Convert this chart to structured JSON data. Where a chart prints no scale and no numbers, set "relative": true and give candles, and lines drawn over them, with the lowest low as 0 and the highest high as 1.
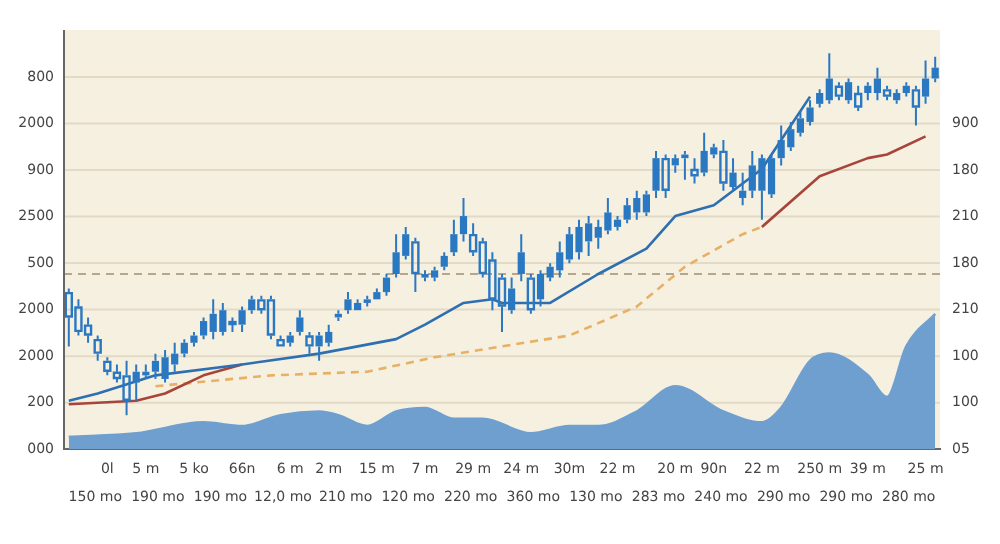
{
  "chart_data": {
    "type": "candlestick",
    "relative": true,
    "color": "#2a78c2",
    "categories": [
      null,
      null,
      null,
      null,
      "0l",
      null,
      null,
      null,
      "5 m",
      null,
      null,
      null,
      null,
      "5 ko",
      null,
      null,
      null,
      null,
      "66n",
      null,
      null,
      null,
      null,
      "6 m",
      null,
      null,
      null,
      "2 m",
      null,
      null,
      null,
      null,
      "15 m",
      null,
      null,
      null,
      null,
      "7 m",
      null,
      null,
      null,
      null,
      "29 m",
      null,
      null,
      null,
      null,
      "24 m",
      null,
      null,
      null,
      null,
      "30m",
      null,
      null,
      null,
      null,
      "22 m",
      null,
      null,
      null,
      null,
      null,
      "20 m",
      null,
      null,
      null,
      "90n",
      null,
      null,
      null,
      null,
      "22 m",
      null,
      null,
      null,
      null,
      null,
      "250 m",
      null,
      null,
      null,
      null,
      "39 m",
      null,
      null,
      null,
      null,
      null,
      "25 m",
      null
    ],
    "ohlc": [
      [
        0.34,
        0.35,
        0.19,
        0.27
      ],
      [
        0.3,
        0.32,
        0.22,
        0.23
      ],
      [
        0.25,
        0.27,
        0.2,
        0.22
      ],
      [
        0.21,
        0.22,
        0.15,
        0.17
      ],
      [
        0.15,
        0.16,
        0.11,
        0.12
      ],
      [
        0.12,
        0.14,
        0.09,
        0.1
      ],
      [
        0.11,
        0.15,
        0.0,
        0.04
      ],
      [
        0.09,
        0.14,
        0.04,
        0.12
      ],
      [
        0.11,
        0.14,
        0.1,
        0.12
      ],
      [
        0.12,
        0.17,
        0.1,
        0.15
      ],
      [
        0.1,
        0.18,
        0.09,
        0.16
      ],
      [
        0.14,
        0.2,
        0.12,
        0.17
      ],
      [
        0.17,
        0.21,
        0.16,
        0.2
      ],
      [
        0.2,
        0.23,
        0.19,
        0.22
      ],
      [
        0.22,
        0.27,
        0.21,
        0.26
      ],
      [
        0.23,
        0.32,
        0.21,
        0.28
      ],
      [
        0.23,
        0.31,
        0.22,
        0.29
      ],
      [
        0.26,
        0.27,
        0.23,
        0.25
      ],
      [
        0.25,
        0.3,
        0.23,
        0.29
      ],
      [
        0.29,
        0.33,
        0.28,
        0.32
      ],
      [
        0.32,
        0.33,
        0.28,
        0.29
      ],
      [
        0.32,
        0.33,
        0.21,
        0.22
      ],
      [
        0.21,
        0.22,
        0.19,
        0.19
      ],
      [
        0.2,
        0.23,
        0.19,
        0.22
      ],
      [
        0.23,
        0.29,
        0.22,
        0.27
      ],
      [
        0.22,
        0.23,
        0.17,
        0.19
      ],
      [
        0.19,
        0.23,
        0.15,
        0.22
      ],
      [
        0.2,
        0.25,
        0.19,
        0.23
      ],
      [
        0.27,
        0.29,
        0.26,
        0.28
      ],
      [
        0.29,
        0.34,
        0.28,
        0.32
      ],
      [
        0.29,
        0.32,
        0.29,
        0.31
      ],
      [
        0.31,
        0.33,
        0.3,
        0.32
      ],
      [
        0.32,
        0.35,
        0.32,
        0.34
      ],
      [
        0.34,
        0.39,
        0.33,
        0.38
      ],
      [
        0.39,
        0.5,
        0.38,
        0.45
      ],
      [
        0.44,
        0.52,
        0.43,
        0.5
      ],
      [
        0.48,
        0.49,
        0.34,
        0.39
      ],
      [
        0.38,
        0.4,
        0.37,
        0.39
      ],
      [
        0.38,
        0.41,
        0.37,
        0.4
      ],
      [
        0.41,
        0.45,
        0.4,
        0.44
      ],
      [
        0.45,
        0.54,
        0.44,
        0.5
      ],
      [
        0.5,
        0.6,
        0.48,
        0.55
      ],
      [
        0.5,
        0.53,
        0.44,
        0.45
      ],
      [
        0.48,
        0.49,
        0.38,
        0.39
      ],
      [
        0.43,
        0.45,
        0.29,
        0.32
      ],
      [
        0.38,
        0.39,
        0.23,
        0.3
      ],
      [
        0.29,
        0.38,
        0.28,
        0.35
      ],
      [
        0.39,
        0.5,
        0.37,
        0.45
      ],
      [
        0.38,
        0.39,
        0.28,
        0.29
      ],
      [
        0.32,
        0.4,
        0.3,
        0.39
      ],
      [
        0.38,
        0.42,
        0.37,
        0.41
      ],
      [
        0.4,
        0.48,
        0.38,
        0.45
      ],
      [
        0.43,
        0.52,
        0.42,
        0.5
      ],
      [
        0.45,
        0.54,
        0.43,
        0.52
      ],
      [
        0.48,
        0.55,
        0.44,
        0.53
      ],
      [
        0.49,
        0.54,
        0.46,
        0.52
      ],
      [
        0.51,
        0.6,
        0.5,
        0.56
      ],
      [
        0.52,
        0.55,
        0.51,
        0.54
      ],
      [
        0.54,
        0.6,
        0.53,
        0.58
      ],
      [
        0.56,
        0.62,
        0.54,
        0.6
      ],
      [
        0.56,
        0.62,
        0.55,
        0.61
      ],
      [
        0.62,
        0.73,
        0.6,
        0.71
      ],
      [
        0.71,
        0.72,
        0.6,
        0.62
      ],
      [
        0.69,
        0.72,
        0.67,
        0.71
      ],
      [
        0.71,
        0.73,
        0.65,
        0.72
      ],
      [
        0.68,
        0.71,
        0.64,
        0.66
      ],
      [
        0.67,
        0.78,
        0.66,
        0.73
      ],
      [
        0.72,
        0.75,
        0.71,
        0.74
      ],
      [
        0.73,
        0.76,
        0.62,
        0.64
      ],
      [
        0.63,
        0.71,
        0.62,
        0.67
      ],
      [
        0.6,
        0.67,
        0.58,
        0.62
      ],
      [
        0.62,
        0.73,
        0.6,
        0.69
      ],
      [
        0.62,
        0.72,
        0.54,
        0.71
      ],
      [
        0.61,
        0.72,
        0.6,
        0.71
      ],
      [
        0.71,
        0.8,
        0.69,
        0.76
      ],
      [
        0.74,
        0.81,
        0.73,
        0.79
      ],
      [
        0.78,
        0.84,
        0.77,
        0.82
      ],
      [
        0.81,
        0.87,
        0.8,
        0.85
      ],
      [
        0.86,
        0.9,
        0.85,
        0.89
      ],
      [
        0.87,
        1.0,
        0.86,
        0.93
      ],
      [
        0.91,
        0.92,
        0.87,
        0.88
      ],
      [
        0.87,
        0.93,
        0.86,
        0.92
      ],
      [
        0.89,
        0.91,
        0.84,
        0.85
      ],
      [
        0.89,
        0.92,
        0.87,
        0.91
      ],
      [
        0.89,
        0.96,
        0.87,
        0.93
      ],
      [
        0.9,
        0.91,
        0.87,
        0.88
      ],
      [
        0.87,
        0.9,
        0.86,
        0.89
      ],
      [
        0.89,
        0.92,
        0.88,
        0.91
      ],
      [
        0.9,
        0.91,
        0.8,
        0.85
      ],
      [
        0.88,
        0.98,
        0.86,
        0.93
      ],
      [
        0.93,
        0.99,
        0.92,
        0.96
      ]
    ],
    "series": [
      {
        "type": "area",
        "color": "#6f9fcf",
        "values": [
          -0.06,
          null,
          null,
          null,
          null,
          null,
          null,
          -0.05,
          null,
          null,
          null,
          null,
          null,
          null,
          -0.02,
          null,
          null,
          null,
          -0.03,
          null,
          null,
          null,
          0.0,
          null,
          null,
          null,
          0.01,
          null,
          0.0,
          null,
          null,
          -0.03,
          null,
          null,
          0.01,
          null,
          null,
          0.02,
          null,
          null,
          -0.01,
          null,
          null,
          -0.01,
          null,
          null,
          null,
          null,
          -0.05,
          null,
          null,
          null,
          -0.03,
          null,
          null,
          -0.03,
          null,
          null,
          null,
          0.01,
          null,
          null,
          null,
          0.08,
          null,
          null,
          null,
          null,
          0.01,
          null,
          null,
          null,
          -0.02,
          null,
          0.02,
          null,
          null,
          0.15,
          null,
          0.17,
          null,
          null,
          null,
          0.11,
          null,
          0.05,
          null,
          0.19,
          null,
          null,
          0.28
        ]
      },
      {
        "type": "line",
        "color": "#2d6fb1",
        "values": [
          0.04,
          null,
          null,
          0.06,
          null,
          null,
          null,
          null,
          null,
          0.11,
          null,
          null,
          null,
          null,
          null,
          null,
          null,
          null,
          0.14,
          null,
          null,
          null,
          null,
          null,
          null,
          null,
          0.17,
          null,
          null,
          null,
          null,
          null,
          null,
          null,
          0.21,
          null,
          null,
          0.25,
          null,
          null,
          null,
          0.31,
          null,
          null,
          0.32,
          0.31,
          null,
          null,
          null,
          null,
          0.31,
          null,
          null,
          null,
          null,
          0.39,
          null,
          null,
          null,
          null,
          0.46,
          null,
          null,
          0.55,
          null,
          null,
          null,
          0.58,
          null,
          null,
          null,
          null,
          0.68,
          null,
          0.76,
          null,
          null,
          0.88,
          null,
          null,
          null,
          null,
          null,
          null,
          null,
          null,
          null,
          null,
          null,
          null,
          null
        ]
      },
      {
        "type": "line",
        "color": "#a8453a",
        "values": [
          0.03,
          null,
          null,
          null,
          null,
          null,
          null,
          0.04,
          null,
          null,
          0.06,
          null,
          null,
          null,
          0.11,
          null,
          null,
          null,
          0.14,
          null,
          null,
          null,
          null,
          null,
          null,
          null,
          null,
          null,
          null,
          null,
          null,
          null,
          null,
          null,
          null,
          null,
          null,
          null,
          null,
          null,
          null,
          null,
          null,
          null,
          null,
          null,
          null,
          null,
          null,
          null,
          null,
          null,
          null,
          null,
          null,
          null,
          null,
          null,
          null,
          null,
          null,
          null,
          null,
          null,
          null,
          null,
          null,
          null,
          null,
          null,
          null,
          null,
          null,
          null,
          null,
          null,
          null,
          null,
          null,
          null,
          null,
          null,
          null,
          null,
          null,
          null,
          null,
          null,
          null,
          null,
          null
        ]
      },
      {
        "type": "line",
        "color": "#a8453a",
        "values": [
          null,
          null,
          null,
          null,
          null,
          null,
          null,
          null,
          null,
          null,
          null,
          null,
          null,
          null,
          null,
          null,
          null,
          null,
          null,
          null,
          null,
          null,
          null,
          null,
          null,
          null,
          null,
          null,
          null,
          null,
          null,
          null,
          null,
          null,
          null,
          null,
          null,
          null,
          null,
          null,
          null,
          null,
          null,
          null,
          null,
          null,
          null,
          null,
          null,
          null,
          null,
          null,
          null,
          null,
          null,
          null,
          null,
          null,
          null,
          null,
          null,
          null,
          null,
          null,
          null,
          null,
          null,
          null,
          null,
          null,
          null,
          null,
          0.52,
          null,
          null,
          null,
          null,
          null,
          0.66,
          null,
          null,
          null,
          null,
          0.71,
          null,
          0.72,
          null,
          null,
          null,
          0.77,
          null
        ]
      },
      {
        "type": "line",
        "line_style": "dashed",
        "color": "#e8b065",
        "values": [
          null,
          null,
          null,
          null,
          null,
          null,
          null,
          null,
          null,
          0.08,
          null,
          null,
          null,
          null,
          null,
          null,
          null,
          null,
          null,
          null,
          null,
          0.11,
          null,
          null,
          null,
          null,
          null,
          null,
          null,
          null,
          null,
          0.12,
          null,
          null,
          null,
          null,
          null,
          null,
          0.16,
          null,
          null,
          null,
          null,
          null,
          null,
          0.19,
          null,
          null,
          null,
          null,
          null,
          null,
          0.22,
          null,
          null,
          null,
          null,
          null,
          null,
          0.3,
          null,
          null,
          null,
          null,
          0.41,
          null,
          null,
          null,
          null,
          null,
          0.5,
          null,
          0.52,
          null,
          null,
          null,
          null,
          null,
          null,
          null,
          null,
          null,
          null,
          null,
          null,
          null,
          null,
          null,
          null,
          null,
          null
        ]
      }
    ],
    "ref_lines": [
      {
        "axis": "y",
        "value": 0.39,
        "color": "#b8a58a",
        "line_style": "dashed"
      }
    ],
    "annotations": [
      "000",
      "200",
      "2000",
      "2000",
      "500",
      "2500",
      "900",
      "2000",
      "800",
      "05",
      "100",
      "100",
      "210",
      "180",
      "210",
      "180",
      "900",
      "150 mo",
      "190 mo",
      "190 mo",
      "12,0 mo",
      "210 mo",
      "120 mo",
      "220 mo",
      "360 mo",
      "130 mo",
      "283 mo",
      "240 mo",
      "290 mo",
      "290 mo",
      "280 mo"
    ],
    "grid": "y"
  }
}
